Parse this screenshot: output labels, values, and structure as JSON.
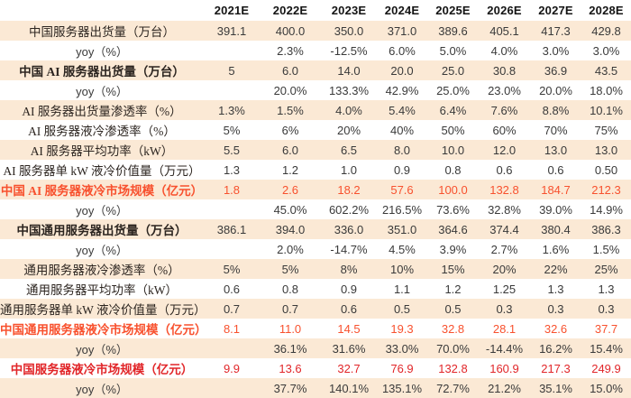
{
  "colors": {
    "band": "#fbe9d5",
    "orange": "#f8512e",
    "red": "#e12629",
    "text": "#3a3a3a"
  },
  "chart_data": {
    "type": "table",
    "title": "",
    "columns": [
      "2021E",
      "2022E",
      "2023E",
      "2024E",
      "2025E",
      "2026E",
      "2027E",
      "2028E"
    ],
    "rows": [
      {
        "label": "中国服务器出货量（万台）",
        "style": "plain",
        "values": [
          "391.1",
          "400.0",
          "350.0",
          "371.0",
          "389.6",
          "405.1",
          "417.3",
          "429.8"
        ]
      },
      {
        "label": "yoy（%）",
        "style": "yoy",
        "values": [
          "",
          "2.3%",
          "-12.5%",
          "6.0%",
          "5.0%",
          "4.0%",
          "3.0%",
          "3.0%"
        ]
      },
      {
        "label": "中国 AI 服务器出货量（万台）",
        "style": "bold",
        "values": [
          "5",
          "6.0",
          "14.0",
          "20.0",
          "25.0",
          "30.8",
          "36.9",
          "43.5"
        ]
      },
      {
        "label": "yoy（%）",
        "style": "yoy",
        "values": [
          "",
          "20.0%",
          "133.3%",
          "42.9%",
          "25.0%",
          "23.0%",
          "20.0%",
          "18.0%"
        ]
      },
      {
        "label": "AI 服务器出货量渗透率（%）",
        "style": "plain",
        "values": [
          "1.3%",
          "1.5%",
          "4.0%",
          "5.4%",
          "6.4%",
          "7.6%",
          "8.8%",
          "10.1%"
        ]
      },
      {
        "label": "AI 服务器液冷渗透率（%）",
        "style": "plain",
        "values": [
          "5%",
          "6%",
          "20%",
          "40%",
          "50%",
          "60%",
          "70%",
          "75%"
        ]
      },
      {
        "label": "AI 服务器平均功率（kW）",
        "style": "plain",
        "values": [
          "5.5",
          "6.0",
          "6.5",
          "8.0",
          "10.0",
          "12.0",
          "13.0",
          "13.0"
        ]
      },
      {
        "label": "AI 服务器单 kW 液冷价值量（万元）",
        "style": "plain",
        "values": [
          "1.3",
          "1.2",
          "1.0",
          "0.9",
          "0.8",
          "0.6",
          "0.6",
          "0.50"
        ]
      },
      {
        "label": "中国 AI 服务器液冷市场规模（亿元）",
        "style": "orange",
        "values": [
          "1.8",
          "2.6",
          "18.2",
          "57.6",
          "100.0",
          "132.8",
          "184.7",
          "212.3"
        ]
      },
      {
        "label": "yoy（%）",
        "style": "yoy",
        "values": [
          "",
          "45.0%",
          "602.2%",
          "216.5%",
          "73.6%",
          "32.8%",
          "39.0%",
          "14.9%"
        ]
      },
      {
        "label": "中国通用服务器出货量（万台）",
        "style": "bold",
        "values": [
          "386.1",
          "394.0",
          "336.0",
          "351.0",
          "364.6",
          "374.4",
          "380.4",
          "386.3"
        ]
      },
      {
        "label": "yoy（%）",
        "style": "yoy",
        "values": [
          "",
          "2.0%",
          "-14.7%",
          "4.5%",
          "3.9%",
          "2.7%",
          "1.6%",
          "1.5%"
        ]
      },
      {
        "label": "通用服务器液冷渗透率（%）",
        "style": "plain",
        "values": [
          "5%",
          "5%",
          "8%",
          "10%",
          "15%",
          "20%",
          "22%",
          "25%"
        ]
      },
      {
        "label": "通用服务器平均功率（kW）",
        "style": "plain",
        "values": [
          "0.6",
          "0.8",
          "0.9",
          "1.1",
          "1.2",
          "1.25",
          "1.3",
          "1.3"
        ]
      },
      {
        "label": "通用服务器单 kW 液冷价值量（万元）",
        "style": "plain",
        "values": [
          "0.7",
          "0.7",
          "0.6",
          "0.5",
          "0.5",
          "0.3",
          "0.3",
          "0.3"
        ]
      },
      {
        "label": "中国通用服务器液冷市场规模（亿元）",
        "style": "orange",
        "values": [
          "8.1",
          "11.0",
          "14.5",
          "19.3",
          "32.8",
          "28.1",
          "32.6",
          "37.7"
        ]
      },
      {
        "label": "yoy（%）",
        "style": "yoy",
        "values": [
          "",
          "36.1%",
          "31.6%",
          "33.0%",
          "70.0%",
          "-14.4%",
          "16.2%",
          "15.4%"
        ]
      },
      {
        "label": "中国服务器液冷市场规模（亿元）",
        "style": "red",
        "values": [
          "9.9",
          "13.6",
          "32.7",
          "76.9",
          "132.8",
          "160.9",
          "217.3",
          "249.9"
        ]
      },
      {
        "label": "yoy（%）",
        "style": "yoy",
        "values": [
          "",
          "37.7%",
          "140.1%",
          "135.1%",
          "72.7%",
          "21.2%",
          "35.1%",
          "15.0%"
        ]
      }
    ]
  }
}
